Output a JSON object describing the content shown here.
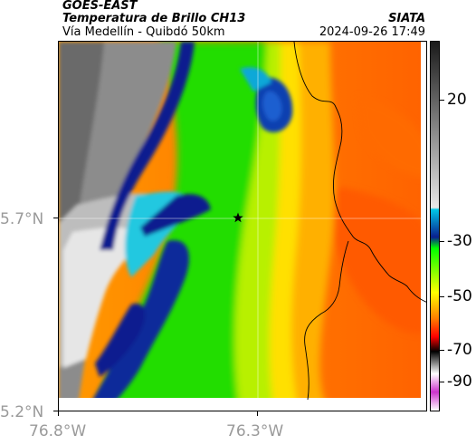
{
  "header": {
    "satellite": "GOES-EAST",
    "product": "Temperatura de Brillo CH13",
    "region": "Vía Medellín - Quibdó 50km",
    "source": "SIATA",
    "datetime": "2024-09-26 17:49"
  },
  "axes": {
    "y_labels": [
      "5.7°N",
      "5.2°N"
    ],
    "x_labels": [
      "76.8°W",
      "76.3°W"
    ]
  },
  "colorbar": {
    "tick_labels": [
      "20",
      "-30",
      "-50",
      "-70",
      "-90"
    ],
    "colors": [
      "#2b2b2b",
      "#d9d9d9",
      "#00c8e6",
      "#0a1f8f",
      "#00ff00",
      "#ffff00",
      "#ff7f00",
      "#ff0000",
      "#000000",
      "#ffffff",
      "#cc33cc"
    ]
  },
  "map": {
    "marker": "star-marker"
  }
}
